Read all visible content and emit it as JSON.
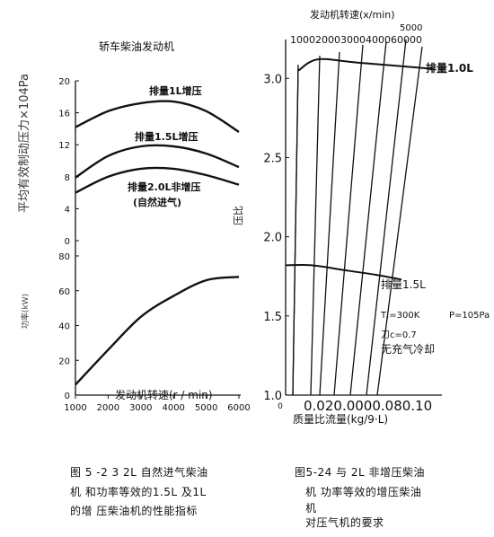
{
  "chart_data": [
    {
      "type": "line",
      "title": "轿车柴油发动机",
      "xlabel": "发动机转速(r / min)",
      "ylabel_top": "平均有效制动压力×104Pa",
      "ylabel_bottom": "功率(kW)",
      "x": [
        1000,
        2000,
        3000,
        4000,
        5000,
        6000
      ],
      "x_tick_labels": [
        "1000",
        "2000",
        "3000",
        "4000",
        "5000",
        "6000"
      ],
      "top_yticks": [
        "20",
        "16",
        "12",
        "8",
        "4",
        "0"
      ],
      "bottom_yticks": [
        "80",
        "60",
        "40",
        "20",
        "0"
      ],
      "series": [
        {
          "name": "排量1L增压",
          "panel": "top",
          "x": [
            1000,
            2000,
            3000,
            4000,
            5000,
            6000
          ],
          "values": [
            14.2,
            16.2,
            17.2,
            17.4,
            16.2,
            13.6
          ]
        },
        {
          "name": "排量1.5L增压",
          "panel": "top",
          "x": [
            1000,
            2000,
            3000,
            4000,
            5000,
            6000
          ],
          "values": [
            7.9,
            10.6,
            11.8,
            11.8,
            10.9,
            9.2
          ]
        },
        {
          "name": "排量2.0L非增压\n(自然进气)",
          "panel": "top",
          "x": [
            1000,
            2000,
            3000,
            4000,
            5000,
            6000
          ],
          "values": [
            6.0,
            8.0,
            9.0,
            9.0,
            8.2,
            7.0
          ]
        },
        {
          "name": "",
          "panel": "bottom",
          "x": [
            1000,
            2000,
            3000,
            4000,
            5000,
            6000
          ],
          "values": [
            6,
            26,
            45,
            57,
            66,
            68
          ]
        }
      ],
      "series_labels": [
        "排量1L增压",
        "排量1.5L增压",
        "排量2.0L非增压",
        "(自然进气)"
      ]
    },
    {
      "type": "line",
      "title": "",
      "top_axis_label": "发动机转速(x/min)",
      "top_tick_labels": [
        "100020003000400060000",
        "5000"
      ],
      "xlabel": "质量比流量(kg/9·L)",
      "x_tick_labels": [
        "0",
        "0.020.0000.080.10"
      ],
      "ylabel": "压比",
      "yticks": [
        "3.0",
        "2.5",
        "2.0",
        "1.5",
        "1.0"
      ],
      "ylim": [
        1.0,
        3.2
      ],
      "xlim": [
        0,
        0.12
      ],
      "speed_lines_rpm": [
        1000,
        2000,
        3000,
        4000,
        5000,
        6000
      ],
      "series": [
        {
          "name": "排量1.0L",
          "x": [
            0.01,
            0.025,
            0.055,
            0.115
          ],
          "values": [
            3.05,
            3.12,
            3.1,
            3.06
          ]
        },
        {
          "name": "排量1.5L",
          "x": [
            0.0,
            0.02,
            0.045,
            0.07,
            0.09
          ],
          "values": [
            1.82,
            1.82,
            1.79,
            1.76,
            1.73
          ]
        }
      ],
      "annotations": [
        "T,=300K",
        "P=105Pa",
        "刀c=0.7",
        "无充气冷却"
      ]
    }
  ],
  "captions": {
    "left": [
      "图 5 -2 3 2L 自然进气柴油",
      "机 和功率等效的1.5L 及1L",
      "的增 压柴油机的性能指标"
    ],
    "right": [
      "图5-24   与 2L 非增压柴油",
      "机  功率等效的增压柴油",
      "机",
      "对压气机的要求"
    ]
  }
}
